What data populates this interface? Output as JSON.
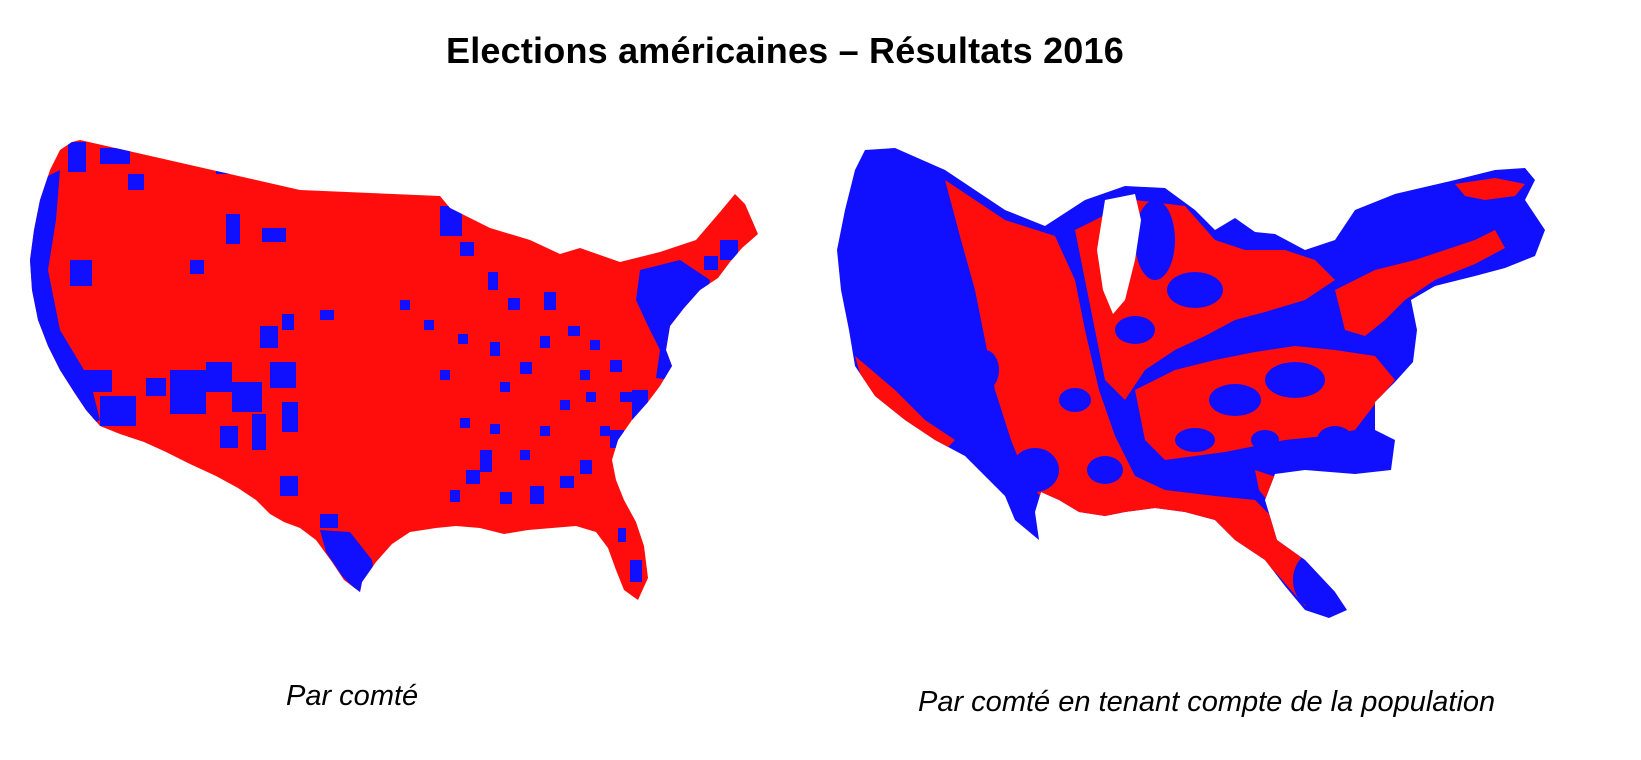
{
  "page": {
    "title": "Elections américaines – Résultats 2016"
  },
  "maps": {
    "left": {
      "caption": "Par comté",
      "colors": {
        "republican": "#ff0d0d",
        "democrat": "#1010ff"
      }
    },
    "right": {
      "caption": "Par comté en tenant compte de la population",
      "colors": {
        "republican": "#ff0d0d",
        "democrat": "#1010ff"
      }
    }
  }
}
